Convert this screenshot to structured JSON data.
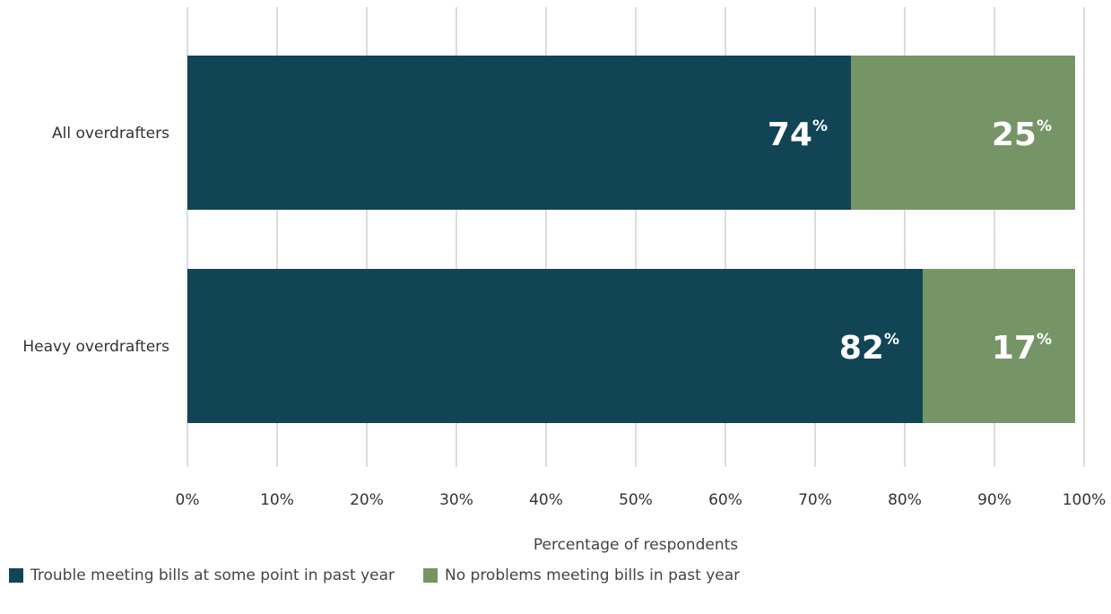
{
  "chart_data": {
    "type": "bar",
    "orientation": "horizontal",
    "stacked": true,
    "categories": [
      "All overdrafters",
      "Heavy overdrafters"
    ],
    "series": [
      {
        "name": "Trouble meeting bills at some point in past year",
        "values": [
          74,
          82
        ],
        "labels": [
          "74",
          "82"
        ],
        "color": "#114556"
      },
      {
        "name": "No problems meeting bills in past year",
        "values": [
          25,
          17
        ],
        "labels": [
          "25",
          "17"
        ],
        "color": "#759566"
      }
    ],
    "label_unit": "%",
    "xlabel": "Percentage of respondents",
    "ylabel": "",
    "xlim": [
      0,
      100
    ],
    "xticks": [
      0,
      10,
      20,
      30,
      40,
      50,
      60,
      70,
      80,
      90,
      100
    ],
    "tick_suffix": "%",
    "grid": true,
    "legend_position": "bottom-left"
  }
}
